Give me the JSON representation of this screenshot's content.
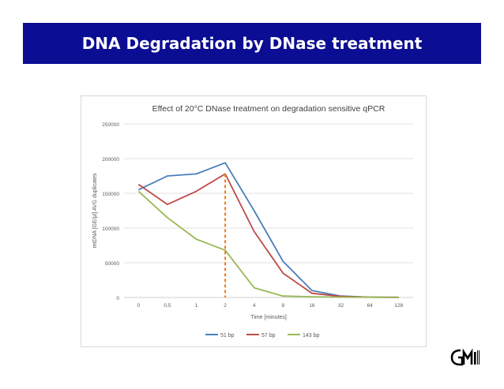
{
  "slide": {
    "title": "DNA Degradation by DNase treatment"
  },
  "logo": {
    "icon": "gmi-logo-icon",
    "text": "GMI"
  },
  "colors": {
    "banner": "#0b0d93",
    "series_51": "#4a7ebb",
    "series_57": "#be4b48",
    "series_143": "#98b954",
    "marker": "#f07a1a",
    "grid": "#d9d9d9"
  },
  "chart_data": {
    "type": "line",
    "title": "Effect of 20°C DNase treatment on degradation sensitive qPCR",
    "xlabel": "Time [minutes]",
    "ylabel": "mtDNA [GE/µl] AVG duplicates",
    "categories": [
      "0",
      "0,5",
      "1",
      "2",
      "4",
      "8",
      "16",
      "32",
      "64",
      "128"
    ],
    "ylim": [
      0,
      250000
    ],
    "yticks": [
      "0",
      "50000",
      "100000",
      "150000",
      "200000",
      "250000"
    ],
    "grid": true,
    "legend_position": "bottom",
    "series": [
      {
        "name": "51 bp",
        "color": "#4a7ebb",
        "values": [
          155000,
          175000,
          178000,
          194000,
          125000,
          52000,
          10000,
          2000,
          500,
          200
        ]
      },
      {
        "name": "57 bp",
        "color": "#be4b48",
        "values": [
          163000,
          134000,
          153000,
          178000,
          95000,
          35000,
          6000,
          1500,
          400,
          200
        ]
      },
      {
        "name": "143 bp",
        "color": "#98b954",
        "values": [
          153000,
          115000,
          84000,
          68000,
          14000,
          2000,
          1000,
          500,
          300,
          100
        ]
      }
    ],
    "annotation": {
      "type": "dashed-vertical-line",
      "x_category": "2",
      "y_value": 178000
    }
  }
}
